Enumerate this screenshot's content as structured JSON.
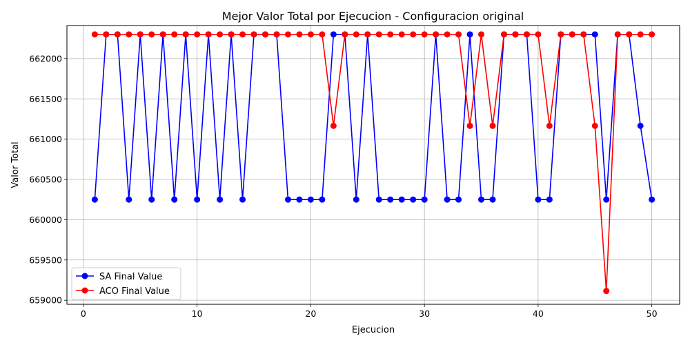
{
  "chart_data": {
    "type": "line",
    "title": "Mejor Valor Total por Ejecucion - Configuracion original",
    "xlabel": "Ejecucion",
    "ylabel": "Valor Total",
    "xlim": [
      -1.45,
      52.45
    ],
    "ylim": [
      658950,
      662410
    ],
    "xticks": [
      0,
      10,
      20,
      30,
      40,
      50
    ],
    "yticks": [
      659000,
      659500,
      660000,
      660500,
      661000,
      661500,
      662000
    ],
    "xtick_labels": [
      "0",
      "10",
      "20",
      "30",
      "40",
      "50"
    ],
    "ytick_labels": [
      "659000",
      "659500",
      "660000",
      "660500",
      "661000",
      "661500",
      "662000"
    ],
    "grid": true,
    "legend_position": "lower-left",
    "x": [
      1,
      2,
      3,
      4,
      5,
      6,
      7,
      8,
      9,
      10,
      11,
      12,
      13,
      14,
      15,
      16,
      17,
      18,
      19,
      20,
      21,
      22,
      23,
      24,
      25,
      26,
      27,
      28,
      29,
      30,
      31,
      32,
      33,
      34,
      35,
      36,
      37,
      38,
      39,
      40,
      41,
      42,
      43,
      44,
      45,
      46,
      47,
      48,
      49,
      50
    ],
    "series": [
      {
        "name": "SA Final Value",
        "color": "#0000ff",
        "marker": "circle",
        "values": [
          660250,
          662300,
          662300,
          660250,
          662300,
          660250,
          662300,
          660250,
          662300,
          660250,
          662300,
          660250,
          662300,
          660250,
          662300,
          662300,
          662300,
          660250,
          660250,
          660250,
          660250,
          662300,
          662300,
          660250,
          662300,
          660250,
          660250,
          660250,
          660250,
          660250,
          662300,
          660250,
          660250,
          662300,
          660250,
          660250,
          662300,
          662300,
          662300,
          660250,
          660250,
          662300,
          662300,
          662300,
          662300,
          660250,
          662300,
          662300,
          661165,
          660250
        ]
      },
      {
        "name": "ACO Final Value",
        "color": "#ff0000",
        "marker": "circle",
        "values": [
          662300,
          662300,
          662300,
          662300,
          662300,
          662300,
          662300,
          662300,
          662300,
          662300,
          662300,
          662300,
          662300,
          662300,
          662300,
          662300,
          662300,
          662300,
          662300,
          662300,
          662300,
          661165,
          662300,
          662300,
          662300,
          662300,
          662300,
          662300,
          662300,
          662300,
          662300,
          662300,
          662300,
          661165,
          662300,
          661165,
          662300,
          662300,
          662300,
          662300,
          661165,
          662300,
          662300,
          662300,
          661165,
          659115,
          662300,
          662300,
          662300,
          662300
        ]
      }
    ]
  }
}
